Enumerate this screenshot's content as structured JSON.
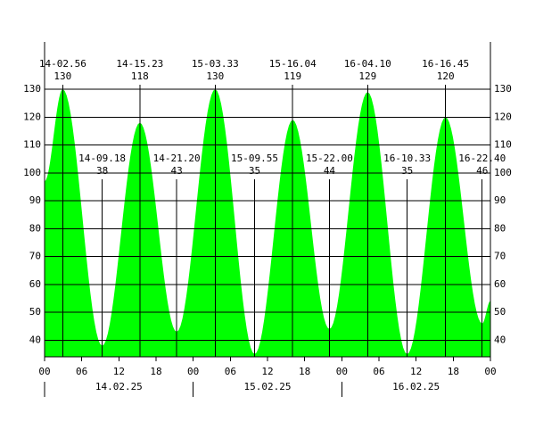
{
  "chart_data": {
    "type": "area",
    "color": "#00ff00",
    "x": [
      0,
      2.933,
      9.3,
      15.383,
      21.333,
      27.55,
      33.917,
      40.067,
      46,
      52.167,
      58.55,
      64.75,
      70.667,
      72
    ],
    "values": [
      97,
      130,
      38,
      118,
      43,
      130,
      35,
      119,
      44,
      129,
      35,
      120,
      46,
      54
    ],
    "time_labels": [
      null,
      "14-02.56",
      "14-09.18",
      "14-15.23",
      "14-21.20",
      "15-03.33",
      "15-09.55",
      "15-16.04",
      "15-22.00",
      "16-04.10",
      "16-10.33",
      "16-16.45",
      "16-22.40",
      null
    ],
    "xlim": [
      0,
      72
    ],
    "xticks": [
      {
        "value": 0,
        "label": "00"
      },
      {
        "value": 6,
        "label": "06"
      },
      {
        "value": 12,
        "label": "12"
      },
      {
        "value": 18,
        "label": "18"
      },
      {
        "value": 24,
        "label": "00"
      },
      {
        "value": 30,
        "label": "06"
      },
      {
        "value": 36,
        "label": "12"
      },
      {
        "value": 42,
        "label": "18"
      },
      {
        "value": 48,
        "label": "00"
      },
      {
        "value": 54,
        "label": "06"
      },
      {
        "value": 60,
        "label": "12"
      },
      {
        "value": 66,
        "label": "18"
      },
      {
        "value": 72,
        "label": "00"
      }
    ],
    "days": [
      {
        "value": 0,
        "label": "14.02.25"
      },
      {
        "value": 24,
        "label": "15.02.25"
      },
      {
        "value": 48,
        "label": "16.02.25"
      }
    ],
    "ylim": [
      34,
      147
    ],
    "yticks": [
      40,
      50,
      60,
      70,
      80,
      90,
      100,
      110,
      120,
      130
    ],
    "grid": true
  }
}
